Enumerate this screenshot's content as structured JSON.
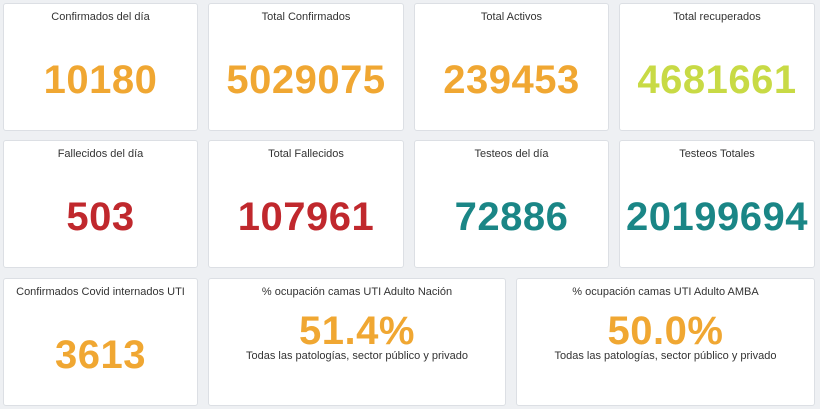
{
  "rows": [
    [
      {
        "title": "Confirmados del día",
        "value": "10180",
        "color": "#f0a732"
      },
      {
        "title": "Total Confirmados",
        "value": "5029075",
        "color": "#f0a732"
      },
      {
        "title": "Total Activos",
        "value": "239453",
        "color": "#f0a732"
      },
      {
        "title": "Total recuperados",
        "value": "4681661",
        "color": "#c8da45"
      }
    ],
    [
      {
        "title": "Fallecidos del día",
        "value": "503",
        "color": "#c0282d"
      },
      {
        "title": "Total Fallecidos",
        "value": "107961",
        "color": "#c0282d"
      },
      {
        "title": "Testeos del día",
        "value": "72886",
        "color": "#1a8686"
      },
      {
        "title": "Testeos Totales",
        "value": "20199694",
        "color": "#1a8686"
      }
    ],
    [
      {
        "title": "Confirmados Covid internados UTI",
        "value": "3613",
        "color": "#f0a732"
      },
      {
        "title": "% ocupación camas UTI Adulto Nación",
        "value": "51.4%",
        "subtitle": "Todas las patologías, sector público y privado",
        "color": "#f0a732"
      },
      {
        "title": "% ocupación camas UTI Adulto AMBA",
        "value": "50.0%",
        "subtitle": "Todas las patologías, sector público y privado",
        "color": "#f0a732"
      }
    ]
  ]
}
